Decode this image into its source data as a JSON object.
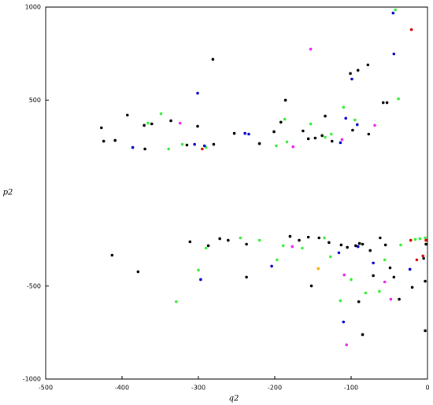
{
  "chart_data": {
    "type": "scatter",
    "x_label": "q2",
    "y_label": "p2",
    "xlim": [
      -500,
      0
    ],
    "ylim": [
      -1000,
      1000
    ],
    "xticks": [
      -500,
      -400,
      -300,
      -200,
      -100,
      0
    ],
    "yticks": [
      -1000,
      -500,
      500,
      1000
    ],
    "series": [
      {
        "color": "#000000",
        "x": [
          -427,
          -424,
          -409,
          -393,
          -371,
          -361,
          -370,
          -336,
          -315,
          -281,
          -301,
          -280,
          -253,
          -220,
          -201,
          -186,
          -192,
          -163,
          -156,
          -147,
          -134,
          -138,
          -125,
          -101,
          -91,
          -78,
          -98,
          -77,
          -58,
          -53,
          -413,
          -379,
          -311,
          -287,
          -272,
          -261,
          -237,
          -237,
          -180,
          -156,
          -142,
          -168,
          -152,
          -129,
          -113,
          -105,
          -94,
          -89,
          -85,
          -75,
          -62,
          -55,
          -49,
          -37,
          -20,
          -5,
          -2,
          -3,
          -3,
          -85,
          -90,
          -71,
          -44
        ],
        "values": [
          351,
          279,
          283,
          419,
          364,
          372,
          237,
          389,
          258,
          719,
          359,
          262,
          321,
          266,
          330,
          499,
          381,
          334,
          292,
          296,
          414,
          309,
          279,
          643,
          660,
          689,
          338,
          317,
          486,
          486,
          -334,
          -423,
          -262,
          -283,
          -245,
          -254,
          -452,
          -275,
          -233,
          -237,
          -241,
          -254,
          -499,
          -266,
          -279,
          -292,
          -283,
          -271,
          -275,
          -309,
          -241,
          -279,
          -402,
          -571,
          -507,
          -351,
          -275,
          -474,
          -740,
          -761,
          -584,
          -444,
          -452
        ]
      },
      {
        "color": "#33ee33",
        "x": [
          -42,
          -187,
          -366,
          -349,
          -339,
          -321,
          -290,
          -184,
          -198,
          -153,
          -110,
          -95,
          -38,
          -134,
          -126,
          -329,
          -300,
          -290,
          -245,
          -220,
          -197,
          -189,
          -164,
          -135,
          -127,
          -114,
          -100,
          -81,
          -63,
          -56,
          -35,
          -10,
          -3,
          -16
        ],
        "values": [
          985,
          397,
          376,
          427,
          237,
          262,
          245,
          275,
          254,
          372,
          461,
          393,
          507,
          300,
          317,
          -584,
          -414,
          -296,
          -241,
          -254,
          -359,
          -283,
          -296,
          -241,
          -342,
          -579,
          -465,
          -537,
          -529,
          -359,
          -279,
          -245,
          -241,
          -249
        ]
      },
      {
        "color": "#0000cc",
        "x": [
          -45,
          -44,
          -99,
          -301,
          -239,
          -386,
          -305,
          -292,
          -234,
          -92,
          -114,
          -107,
          -297,
          -204,
          -110,
          -71,
          -23,
          -91,
          -116
        ],
        "values": [
          968,
          748,
          613,
          537,
          321,
          245,
          262,
          254,
          317,
          368,
          271,
          402,
          -465,
          -393,
          -693,
          -376,
          -410,
          -288,
          -321
        ]
      },
      {
        "color": "#dd0000",
        "x": [
          -21,
          -295,
          -22,
          -6,
          -2,
          -14
        ],
        "values": [
          879,
          237,
          -254,
          -338,
          -254,
          -359
        ]
      },
      {
        "color": "#ee22ee",
        "x": [
          -153,
          -324,
          -112,
          -69,
          -176,
          -106,
          -48,
          -56,
          -109,
          -177
        ],
        "values": [
          774,
          376,
          288,
          364,
          249,
          -816,
          -571,
          -478,
          -440,
          -288
        ]
      },
      {
        "color": "#ffaa00",
        "x": [
          -143
        ],
        "values": [
          -406
        ]
      }
    ]
  }
}
